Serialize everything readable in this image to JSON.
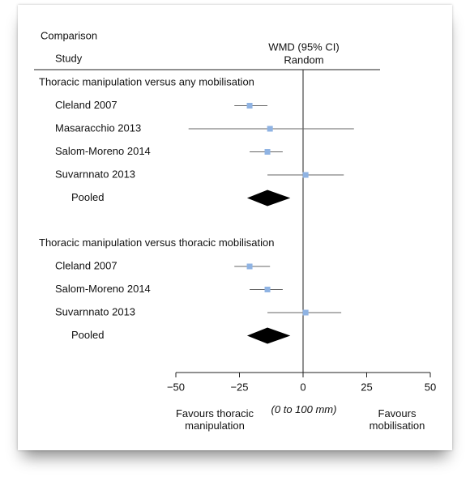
{
  "chart_data": {
    "type": "forest",
    "header_comparison": "Comparison",
    "header_study": "Study",
    "header_measure": "WMD (95% CI)",
    "header_model": "Random",
    "groups": [
      {
        "title": "Thoracic manipulation versus any mobilisation",
        "studies": [
          {
            "name": "Cleland 2007",
            "estimate": -21,
            "lower": -27,
            "upper": -14
          },
          {
            "name": "Masaracchio 2013",
            "estimate": -13,
            "lower": -45,
            "upper": 20
          },
          {
            "name": "Salom-Moreno 2014",
            "estimate": -14,
            "lower": -21,
            "upper": -8
          },
          {
            "name": "Suvarnnato 2013",
            "estimate": 1,
            "lower": -14,
            "upper": 16
          }
        ],
        "pooled": {
          "name": "Pooled",
          "estimate": -14,
          "lower": -22,
          "upper": -5
        }
      },
      {
        "title": "Thoracic manipulation versus thoracic mobilisation",
        "studies": [
          {
            "name": "Cleland 2007",
            "estimate": -21,
            "lower": -27,
            "upper": -13
          },
          {
            "name": "Salom-Moreno 2014",
            "estimate": -14,
            "lower": -21,
            "upper": -8
          },
          {
            "name": "Suvarnnato 2013",
            "estimate": 1,
            "lower": -14,
            "upper": 15
          }
        ],
        "pooled": {
          "name": "Pooled",
          "estimate": -14,
          "lower": -22,
          "upper": -5
        }
      }
    ],
    "xlim": [
      -50,
      50
    ],
    "xticks": [
      {
        "value": -50,
        "label": "−50"
      },
      {
        "value": -25,
        "label": "−25"
      },
      0,
      25,
      50
    ],
    "marker_color": "#8fb3e3",
    "line_color": "#666666",
    "diamond_color": "#000000",
    "favours_left": "Favours thoracic manipulation",
    "scale_note": "(0 to 100 mm)",
    "favours_right": "Favours mobilisation"
  }
}
